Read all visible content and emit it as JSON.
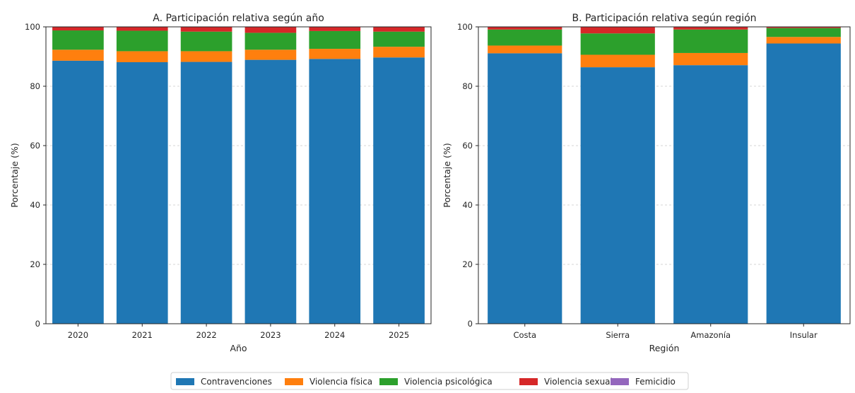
{
  "figure": {
    "legend": {
      "placement": "bottom-center",
      "entries": [
        "Contravenciones",
        "Violencia física",
        "Violencia psicológica",
        "Violencia sexual",
        "Femicidio"
      ]
    }
  },
  "colors": {
    "Contravenciones": "#1f77b4",
    "Violencia física": "#ff7f0e",
    "Violencia psicológica": "#2ca02c",
    "Violencia sexual": "#d62728",
    "Femicidio": "#9467bd"
  },
  "chart_data": [
    {
      "type": "bar",
      "stacked": true,
      "title": "A. Participación relativa según año",
      "xlabel": "Año",
      "ylabel": "Porcentaje (%)",
      "ylim": [
        0,
        100
      ],
      "yticks": [
        0,
        20,
        40,
        60,
        80,
        100
      ],
      "grid": "y-dashed",
      "categories": [
        "2020",
        "2021",
        "2022",
        "2023",
        "2024",
        "2025"
      ],
      "series": [
        {
          "name": "Contravenciones",
          "values": [
            88.6,
            88.1,
            88.2,
            88.9,
            89.2,
            89.7
          ]
        },
        {
          "name": "Violencia física",
          "values": [
            3.7,
            3.7,
            3.6,
            3.4,
            3.4,
            3.6
          ]
        },
        {
          "name": "Violencia psicológica",
          "values": [
            6.5,
            6.9,
            6.6,
            5.7,
            6.0,
            5.1
          ]
        },
        {
          "name": "Violencia sexual",
          "values": [
            1.2,
            1.3,
            1.6,
            2.0,
            1.4,
            1.6
          ]
        },
        {
          "name": "Femicidio",
          "values": [
            0.0,
            0.0,
            0.0,
            0.0,
            0.0,
            0.0
          ]
        }
      ]
    },
    {
      "type": "bar",
      "stacked": true,
      "title": "B. Participación relativa según región",
      "xlabel": "Región",
      "ylabel": "Porcentaje (%)",
      "ylim": [
        0,
        100
      ],
      "yticks": [
        0,
        20,
        40,
        60,
        80,
        100
      ],
      "grid": "y-dashed",
      "categories": [
        "Costa",
        "Sierra",
        "Amazonía",
        "Insular"
      ],
      "series": [
        {
          "name": "Contravenciones",
          "values": [
            91.1,
            86.4,
            87.1,
            94.4
          ]
        },
        {
          "name": "Violencia física",
          "values": [
            2.6,
            4.2,
            4.1,
            2.2
          ]
        },
        {
          "name": "Violencia psicológica",
          "values": [
            5.4,
            7.2,
            7.9,
            3.0
          ]
        },
        {
          "name": "Violencia sexual",
          "values": [
            0.9,
            2.2,
            0.9,
            0.4
          ]
        },
        {
          "name": "Femicidio",
          "values": [
            0.0,
            0.0,
            0.0,
            0.0
          ]
        }
      ]
    }
  ]
}
